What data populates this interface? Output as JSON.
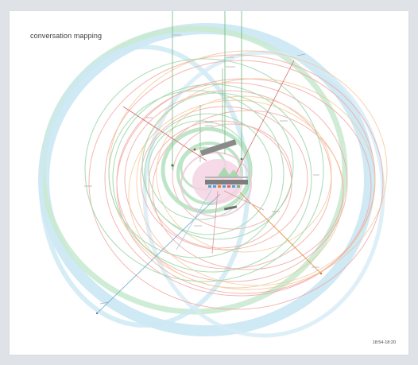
{
  "title": "conversation mapping",
  "time_range": "18:54-18:20",
  "colors": {
    "background": "#dfe3e7",
    "sheet": "#ffffff",
    "green": "#7ec98f",
    "blue": "#8ec8e6",
    "red": "#e98c8c",
    "orange": "#e8a25c",
    "pink": "#eab0c8",
    "gray": "#7f7f7f",
    "dark_gray": "#555555"
  }
}
